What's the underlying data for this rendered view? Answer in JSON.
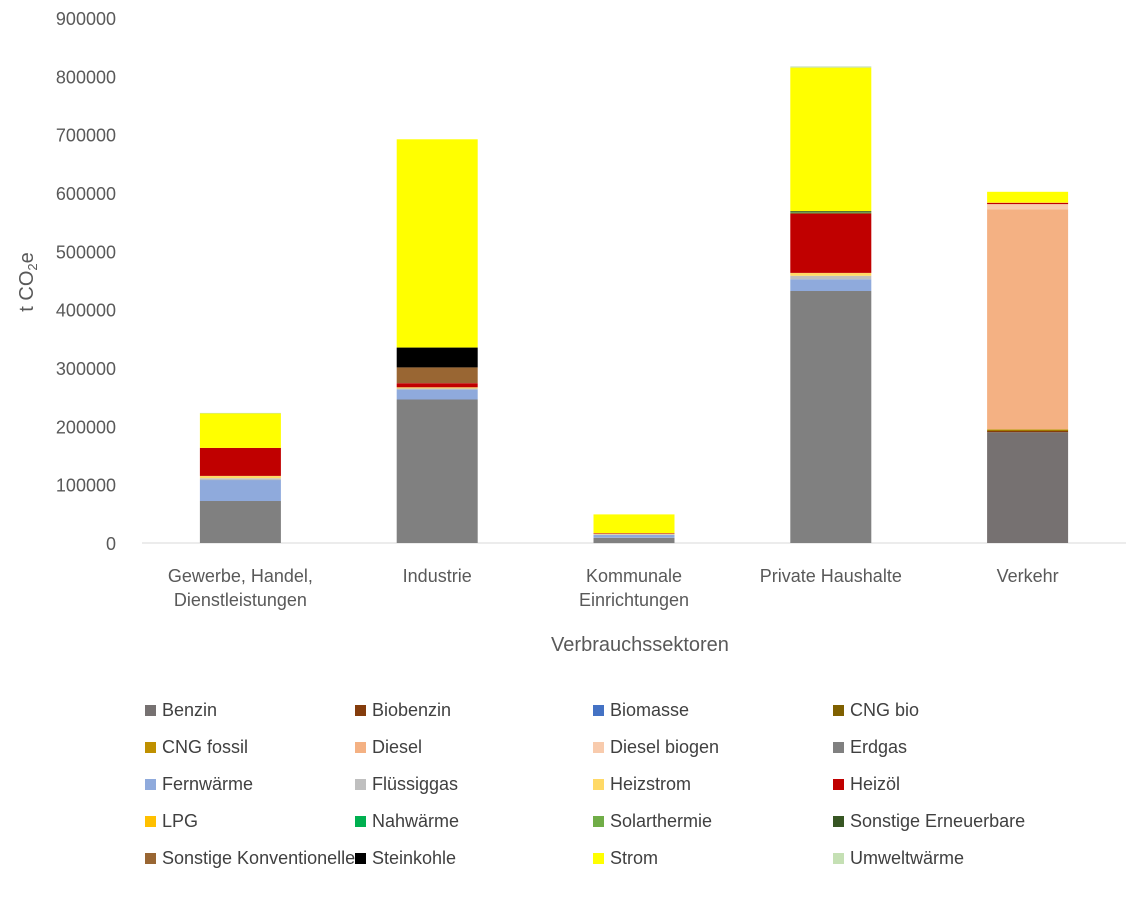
{
  "chart_data": {
    "type": "bar",
    "stacked": true,
    "xlabel": "Verbrauchssektoren",
    "ylabel": "t CO",
    "ylabel_sub": "2",
    "ylabel_suffix": "e",
    "ylim": [
      0,
      900000
    ],
    "yticks": [
      "0",
      "100000",
      "200000",
      "300000",
      "400000",
      "500000",
      "600000",
      "700000",
      "800000",
      "900000"
    ],
    "categories": [
      [
        "Gewerbe, Handel,",
        "Dienstleistungen"
      ],
      [
        "Industrie"
      ],
      [
        "Kommunale",
        "Einrichtungen"
      ],
      [
        "Private Haushalte"
      ],
      [
        "Verkehr"
      ]
    ],
    "grid": false,
    "legend_position": "bottom",
    "series": [
      {
        "name": "Benzin",
        "color": "#767171",
        "values": [
          0,
          0,
          0,
          0,
          190000
        ]
      },
      {
        "name": "Biobenzin",
        "color": "#843c0c",
        "values": [
          0,
          0,
          0,
          0,
          2000
        ]
      },
      {
        "name": "Biomasse",
        "color": "#4472c4",
        "values": [
          0,
          0,
          0,
          0,
          0
        ]
      },
      {
        "name": "CNG bio",
        "color": "#7f6000",
        "values": [
          0,
          0,
          0,
          0,
          1000
        ]
      },
      {
        "name": "CNG fossil",
        "color": "#bf9000",
        "values": [
          0,
          0,
          0,
          0,
          2000
        ]
      },
      {
        "name": "Diesel",
        "color": "#f4b183",
        "values": [
          0,
          0,
          0,
          0,
          377000
        ]
      },
      {
        "name": "Diesel biogen",
        "color": "#f8cbad",
        "values": [
          0,
          0,
          0,
          0,
          9000
        ]
      },
      {
        "name": "Erdgas",
        "color": "#808080",
        "values": [
          72000,
          246000,
          9000,
          432000,
          0
        ]
      },
      {
        "name": "Fernwärme",
        "color": "#8faadc",
        "values": [
          36000,
          17000,
          5000,
          20000,
          0
        ]
      },
      {
        "name": "Flüssiggas",
        "color": "#bfbfbf",
        "values": [
          3000,
          2000,
          1000,
          6000,
          0
        ]
      },
      {
        "name": "Heizstrom",
        "color": "#ffd966",
        "values": [
          4000,
          2000,
          1000,
          5000,
          0
        ]
      },
      {
        "name": "Heizöl",
        "color": "#c00000",
        "values": [
          48000,
          7000,
          1000,
          102000,
          2000
        ]
      },
      {
        "name": "LPG",
        "color": "#ffc000",
        "values": [
          0,
          0,
          0,
          0,
          1000
        ]
      },
      {
        "name": "Nahwärme",
        "color": "#00b050",
        "values": [
          0,
          0,
          0,
          0,
          0
        ]
      },
      {
        "name": "Solarthermie",
        "color": "#70ad47",
        "values": [
          0,
          0,
          0,
          2000,
          0
        ]
      },
      {
        "name": "Sonstige Erneuerbare",
        "color": "#375623",
        "values": [
          0,
          0,
          0,
          2000,
          0
        ]
      },
      {
        "name": "Sonstige Konventionelle",
        "color": "#996633",
        "values": [
          0,
          27000,
          0,
          0,
          0
        ]
      },
      {
        "name": "Steinkohle",
        "color": "#000000",
        "values": [
          0,
          34000,
          0,
          0,
          0
        ]
      },
      {
        "name": "Strom",
        "color": "#ffff00",
        "values": [
          59000,
          357000,
          32000,
          246000,
          18000
        ]
      },
      {
        "name": "Umweltwärme",
        "color": "#c5e0b4",
        "values": [
          1000,
          0,
          0,
          2000,
          0
        ]
      }
    ]
  }
}
